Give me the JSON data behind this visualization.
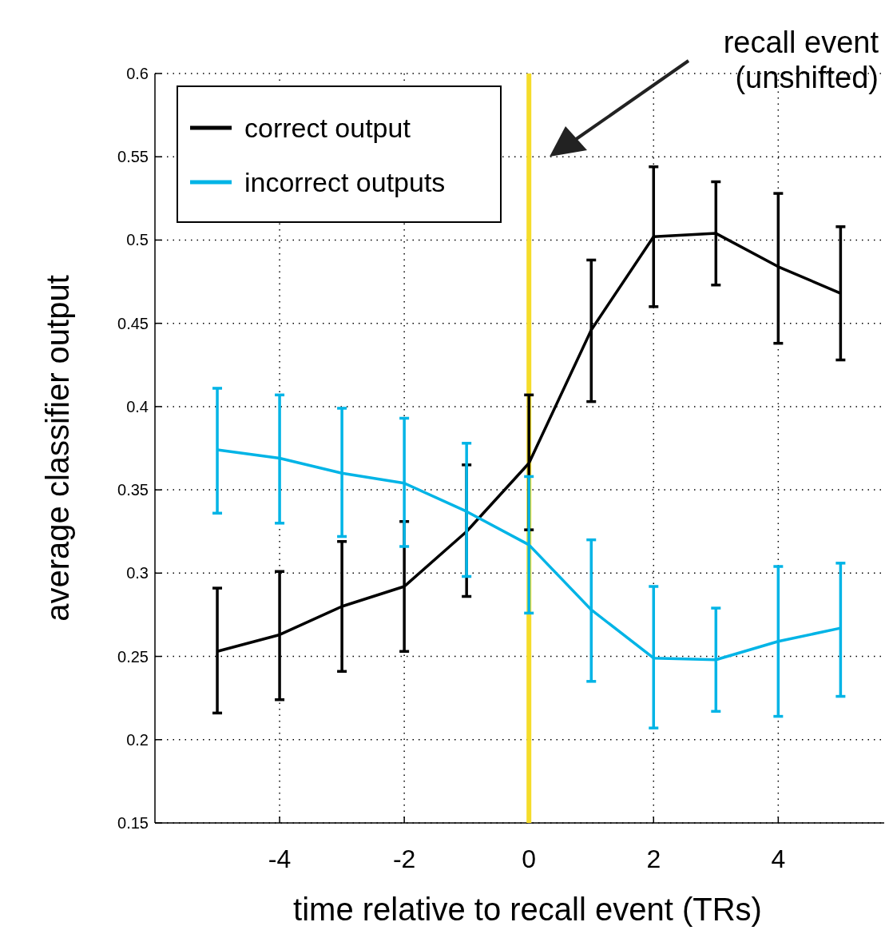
{
  "chart_data": {
    "type": "line",
    "xlabel": "time relative to recall event (TRs)",
    "ylabel": "average classifier output",
    "x": [
      -5,
      -4,
      -3,
      -2,
      -1,
      0,
      1,
      2,
      3,
      4,
      5
    ],
    "series": [
      {
        "name": "correct output",
        "color": "#000000",
        "values": [
          0.253,
          0.263,
          0.28,
          0.292,
          0.325,
          0.366,
          0.446,
          0.502,
          0.504,
          0.484,
          0.468
        ],
        "errors": [
          [
            0.216,
            0.291
          ],
          [
            0.224,
            0.301
          ],
          [
            0.241,
            0.319
          ],
          [
            0.253,
            0.331
          ],
          [
            0.286,
            0.365
          ],
          [
            0.326,
            0.407
          ],
          [
            0.403,
            0.488
          ],
          [
            0.46,
            0.544
          ],
          [
            0.473,
            0.535
          ],
          [
            0.438,
            0.528
          ],
          [
            0.428,
            0.508
          ]
        ]
      },
      {
        "name": "incorrect outputs",
        "color": "#00b4e6",
        "values": [
          0.374,
          0.369,
          0.36,
          0.354,
          0.337,
          0.317,
          0.278,
          0.249,
          0.248,
          0.259,
          0.267
        ],
        "errors": [
          [
            0.336,
            0.411
          ],
          [
            0.33,
            0.407
          ],
          [
            0.322,
            0.399
          ],
          [
            0.316,
            0.393
          ],
          [
            0.298,
            0.378
          ],
          [
            0.276,
            0.358
          ],
          [
            0.235,
            0.32
          ],
          [
            0.207,
            0.292
          ],
          [
            0.217,
            0.279
          ],
          [
            0.214,
            0.304
          ],
          [
            0.226,
            0.306
          ]
        ]
      }
    ],
    "xlim": [
      -6,
      5.7
    ],
    "xticks": [
      -4,
      -2,
      0,
      2,
      4
    ],
    "ylim": [
      0.15,
      0.6
    ],
    "yticks": [
      0.15,
      0.2,
      0.25,
      0.3,
      0.35,
      0.4,
      0.45,
      0.5,
      0.55,
      0.6
    ],
    "ref_lines": [
      {
        "axis": "x",
        "value": 0,
        "color": "#f5dc2a"
      }
    ],
    "annotations": [
      "recall event\n(unshifted)"
    ],
    "grid": true,
    "legend": "top left",
    "line_style": "solid",
    "marker": "none"
  }
}
